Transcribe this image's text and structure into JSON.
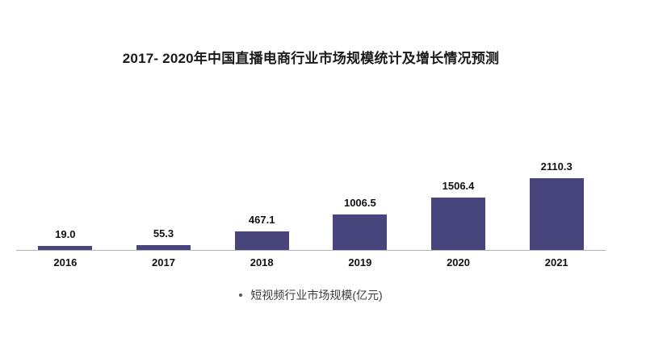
{
  "chart_data": {
    "type": "bar",
    "title": "2017- 2020年中国直播电商行业市场规模统计及增长情况预测",
    "categories": [
      "2016",
      "2017",
      "2018",
      "2019",
      "2020",
      "2021"
    ],
    "values": [
      19.0,
      55.3,
      467.1,
      1006.5,
      1506.4,
      2110.3
    ],
    "value_labels": [
      "19.0",
      "55.3",
      "467.1",
      "1006.5",
      "1506.4",
      "2110.3"
    ],
    "legend": "短视频行业市场规模(亿元)",
    "xlabel": "",
    "ylabel": "",
    "ylim": [
      0,
      2110.3
    ],
    "grid": false,
    "legend_position": "bottom",
    "colors": {
      "bar": "#47457c",
      "axis": "#b3b3b3",
      "title_text": "#1a1a1a",
      "label_text": "#111111",
      "legend_text": "#3d3d3d"
    }
  }
}
